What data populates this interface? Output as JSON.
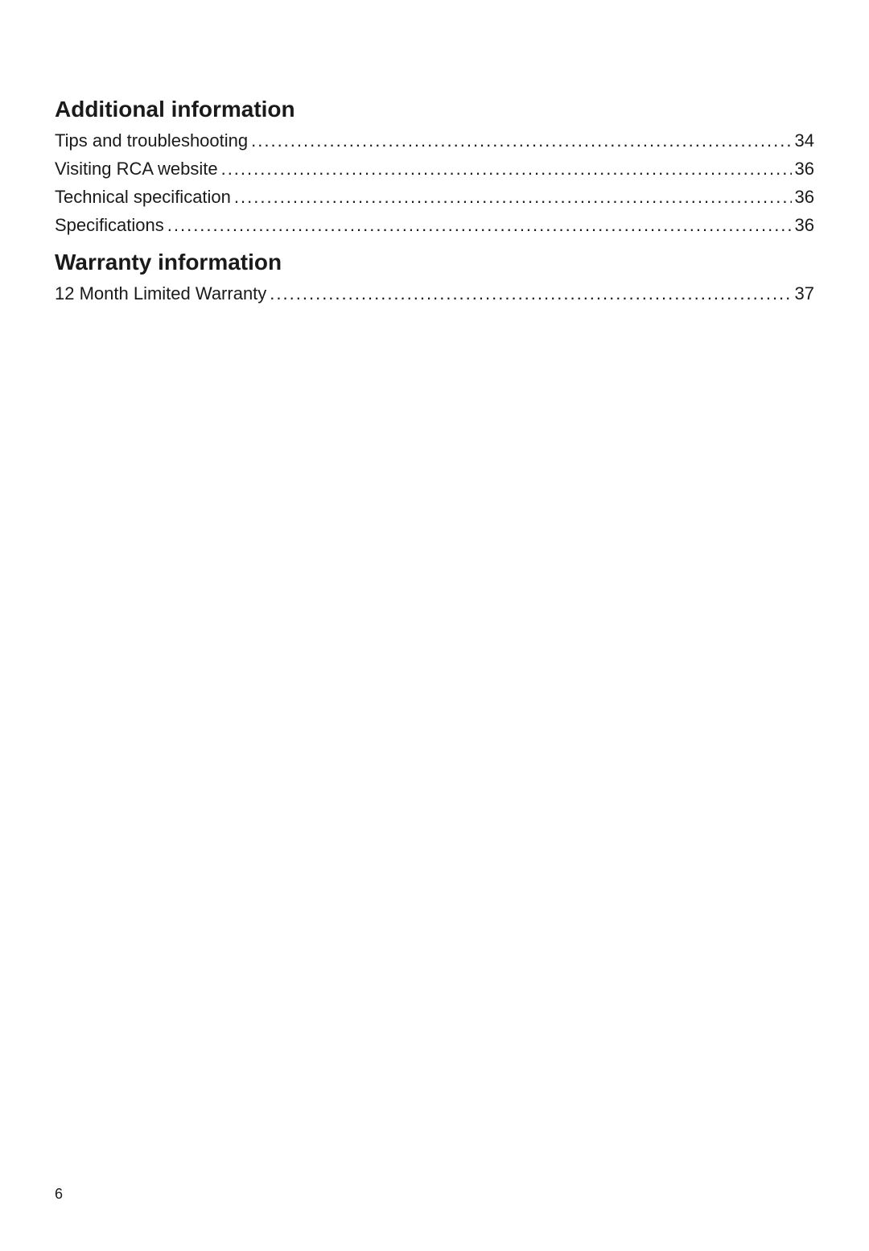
{
  "sections": [
    {
      "heading": "Additional information",
      "entries": [
        {
          "label": "Tips and troubleshooting",
          "page": "34"
        },
        {
          "label": "Visiting RCA website",
          "page": "36"
        },
        {
          "label": "Technical specification",
          "page": "36"
        },
        {
          "label": "Specifications",
          "page": "36"
        }
      ]
    },
    {
      "heading": "Warranty information",
      "entries": [
        {
          "label": "12 Month Limited Warranty",
          "page": "37"
        }
      ]
    }
  ],
  "pageNumber": "6",
  "styling": {
    "background_color": "#ffffff",
    "heading_color": "#1a1a1a",
    "heading_fontsize": 28,
    "heading_fontweight": "bold",
    "entry_color": "#1a1a1a",
    "entry_fontsize": 22,
    "page_number_fontsize": 18,
    "font_family": "Myriad Pro"
  }
}
